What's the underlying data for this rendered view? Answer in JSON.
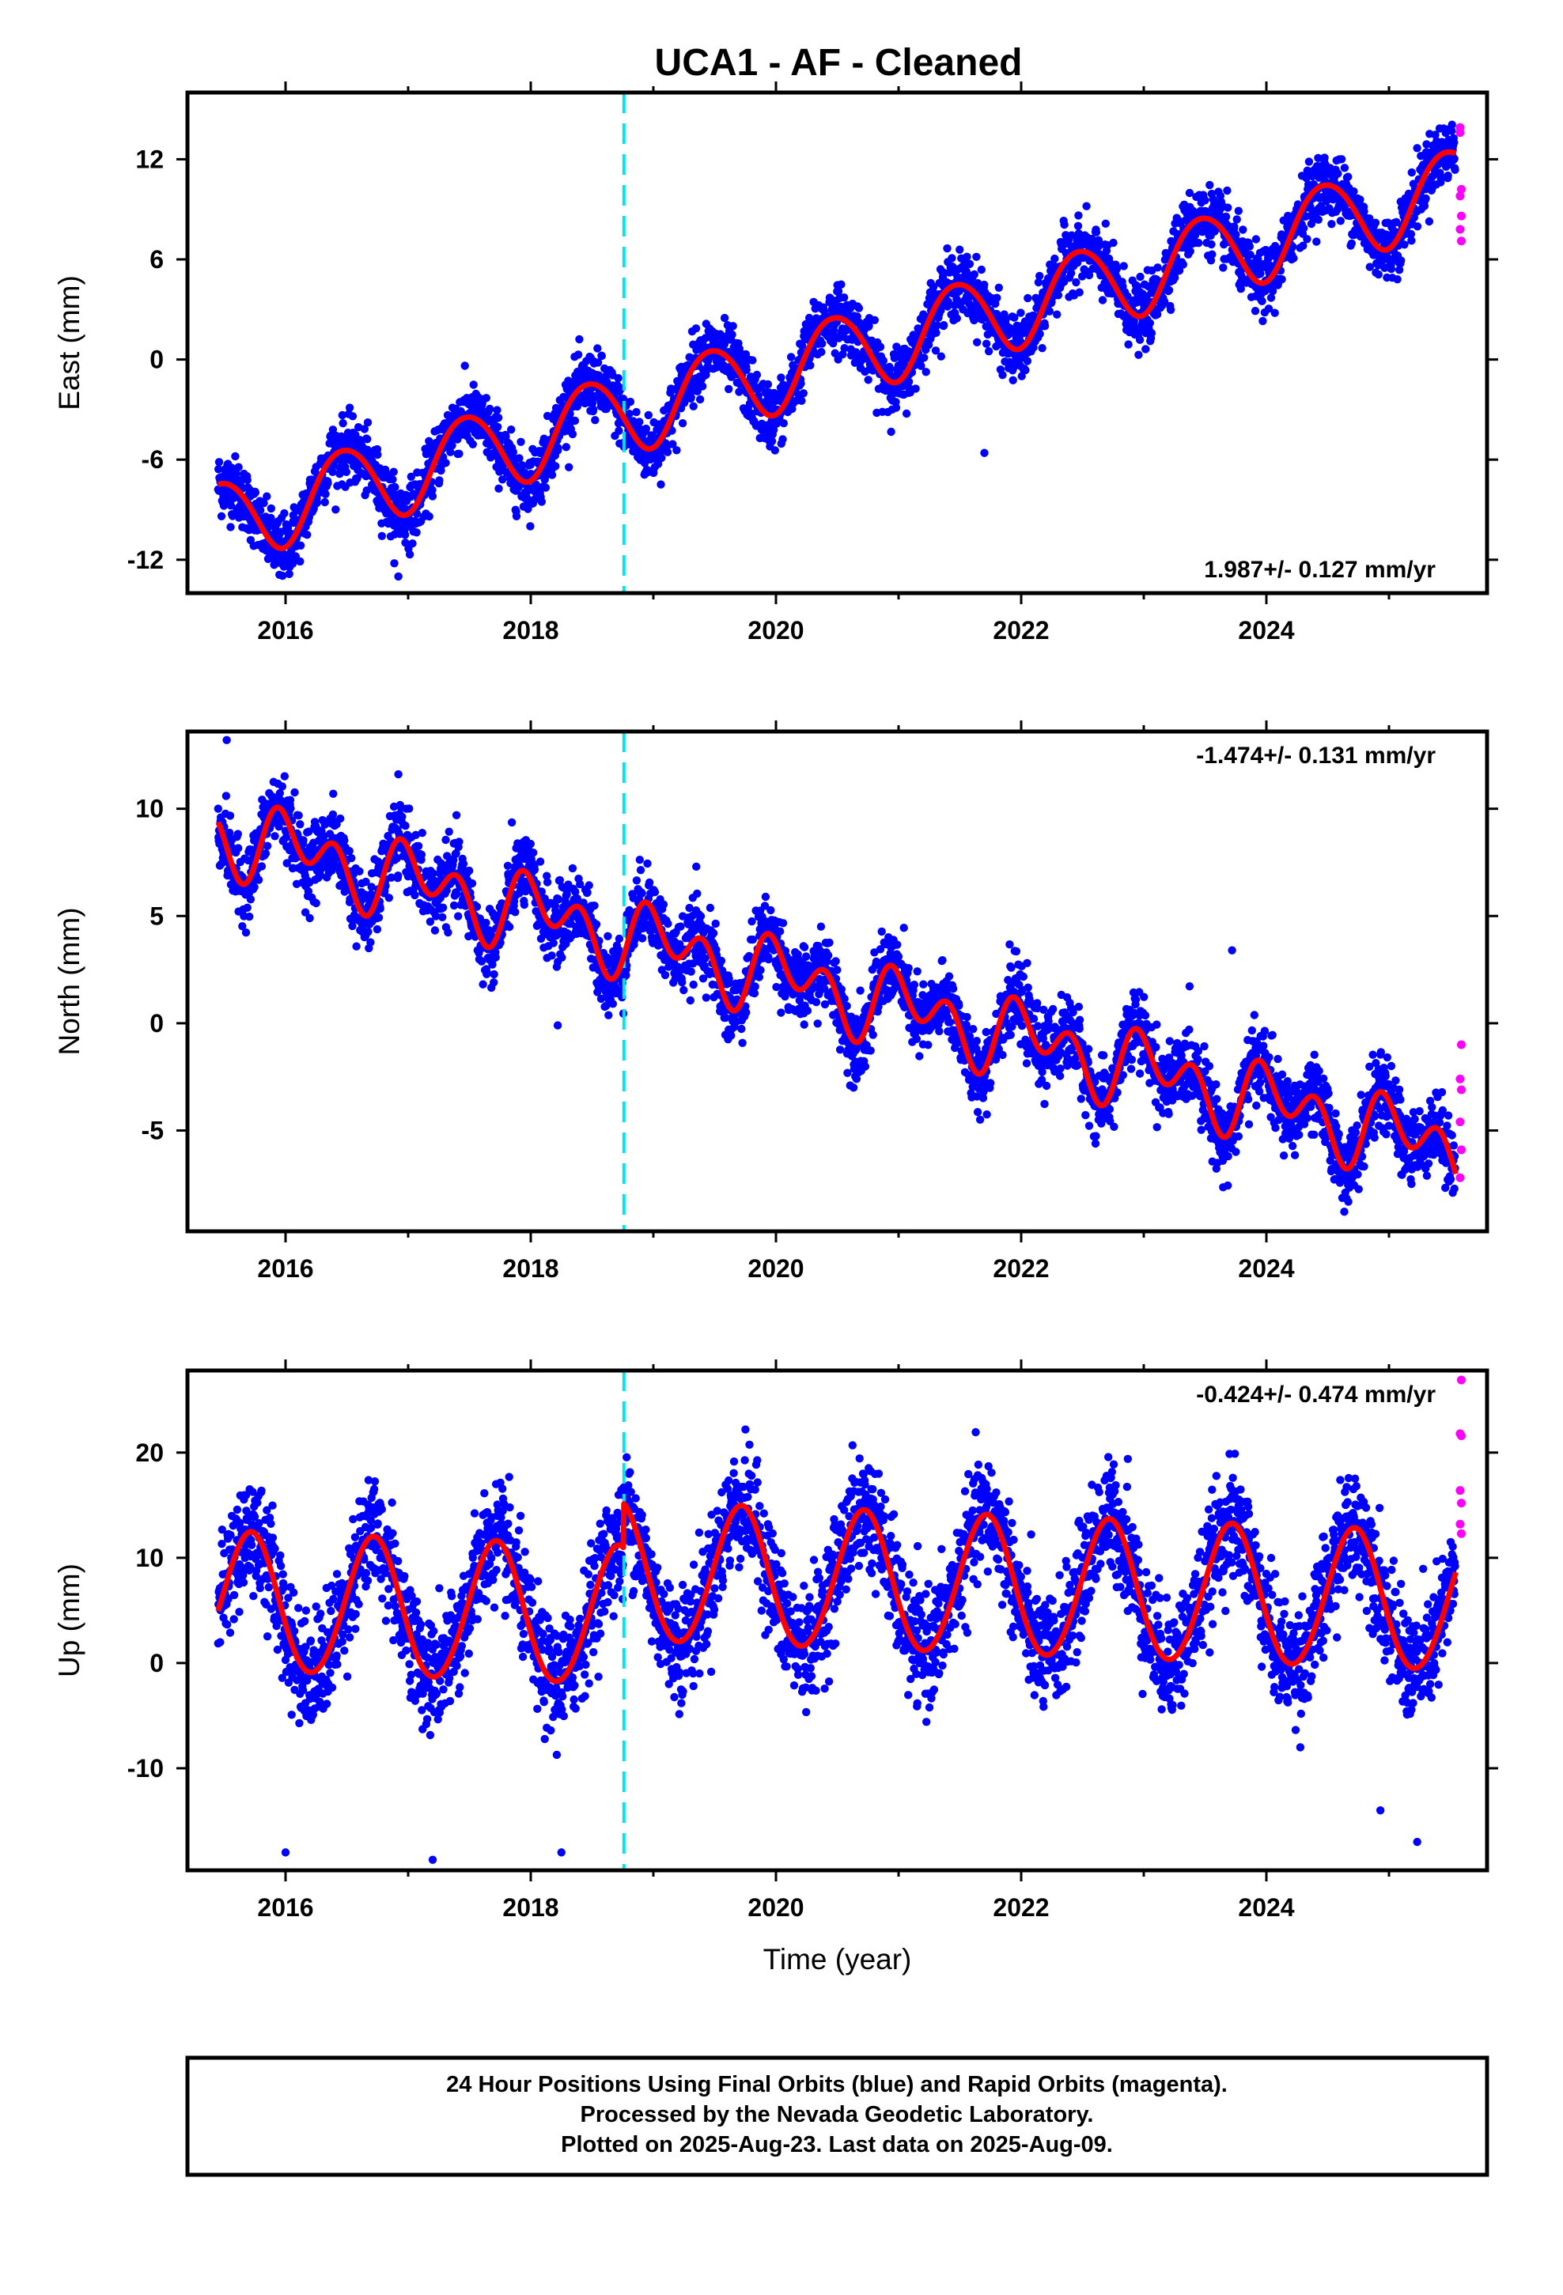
{
  "figure": {
    "title": "UCA1  - AF - Cleaned",
    "footer": {
      "lines": [
        "24 Hour Positions Using Final Orbits (blue) and Rapid Orbits (magenta).",
        "Processed by the Nevada Geodetic Laboratory.",
        "Plotted on 2025-Aug-23. Last data on 2025-Aug-09."
      ]
    },
    "colors": {
      "final_orbits": "#0000ff",
      "rapid_orbits": "#ff00ff",
      "model_fit": "#ff0000",
      "equipment_change": "#00e5ee",
      "frame": "#000000"
    }
  },
  "chart_data": [
    {
      "type": "scatter",
      "component": "East",
      "ylabel": "East (mm)",
      "xlabel": "",
      "xlim": [
        2015.2,
        2025.8
      ],
      "ylim": [
        -14,
        16
      ],
      "xticks": [
        2016,
        2018,
        2020,
        2022,
        2024
      ],
      "yticks": [
        -12,
        -6,
        0,
        6,
        12
      ],
      "rate_label": "1.987+/- 0.127 mm/yr",
      "rate_position": "bottom-right",
      "equipment_change_epoch": 2018.76,
      "model": {
        "t0": 2020.5,
        "offset": 0.3,
        "velocity": 1.987,
        "annual_cos": -2.4,
        "annual_sin": 0.4,
        "semiannual_cos": -0.2,
        "semiannual_sin": 0.0,
        "jump": 0.0,
        "start": 2015.45,
        "end": 2025.55
      },
      "final_orbit_series": {
        "name": "Final Orbits (blue)",
        "start": 2015.45,
        "end": 2025.54,
        "scatter_mm": 0.95
      },
      "rapid_orbit_points": [
        [
          2025.58,
          13.9
        ],
        [
          2025.58,
          13.6
        ],
        [
          2025.59,
          10.2
        ],
        [
          2025.58,
          9.8
        ],
        [
          2025.59,
          8.6
        ],
        [
          2025.58,
          7.8
        ],
        [
          2025.59,
          7.1
        ]
      ],
      "outliers": [
        [
          2021.7,
          -5.6
        ],
        [
          2016.92,
          -13.0
        ],
        [
          2015.95,
          -12.9
        ]
      ]
    },
    {
      "type": "scatter",
      "component": "North",
      "ylabel": "North (mm)",
      "xlabel": "",
      "xlim": [
        2015.2,
        2025.8
      ],
      "ylim": [
        -9.7,
        13.6
      ],
      "xticks": [
        2016,
        2018,
        2020,
        2022,
        2024
      ],
      "yticks": [
        -5,
        0,
        5,
        10
      ],
      "rate_label": "-1.474+/- 0.131 mm/yr",
      "rate_position": "top-right",
      "equipment_change_epoch": 2018.76,
      "model": {
        "t0": 2020.5,
        "offset": 1.5,
        "velocity": -1.474,
        "annual_cos": 0.9,
        "annual_sin": 0.5,
        "semiannual_cos": 0.6,
        "semiannual_sin": -1.1,
        "jump": 0.0,
        "start": 2015.45,
        "end": 2025.55
      },
      "final_orbit_series": {
        "name": "Final Orbits (blue)",
        "start": 2015.45,
        "end": 2025.54,
        "scatter_mm": 0.85
      },
      "rapid_orbit_points": [
        [
          2025.59,
          -1.0
        ],
        [
          2025.58,
          -2.6
        ],
        [
          2025.59,
          -3.1
        ],
        [
          2025.58,
          -4.6
        ],
        [
          2025.59,
          -5.9
        ],
        [
          2025.58,
          -7.2
        ]
      ],
      "outliers": [
        [
          2023.72,
          3.4
        ],
        [
          2018.22,
          -0.1
        ],
        [
          2019.35,
          7.3
        ],
        [
          2015.52,
          13.2
        ]
      ]
    },
    {
      "type": "scatter",
      "component": "Up",
      "ylabel": "Up (mm)",
      "xlabel": "Time (year)",
      "xlim": [
        2015.2,
        2025.8
      ],
      "ylim": [
        -19.7,
        27.8
      ],
      "xticks": [
        2016,
        2018,
        2020,
        2022,
        2024
      ],
      "yticks": [
        -10,
        0,
        10,
        20
      ],
      "rate_label": "-0.424+/- 0.474 mm/yr",
      "rate_position": "top-right",
      "equipment_change_epoch": 2018.76,
      "model": {
        "t0": 2020.5,
        "offset": 3.6,
        "velocity": -0.424,
        "annual_cos": -1.5,
        "annual_sin": -6.4,
        "semiannual_cos": -0.3,
        "semiannual_sin": 0.0,
        "jump": 4.2,
        "start": 2015.45,
        "end": 2025.55
      },
      "final_orbit_series": {
        "name": "Final Orbits (blue)",
        "start": 2015.45,
        "end": 2025.54,
        "scatter_mm": 2.7
      },
      "rapid_orbit_points": [
        [
          2025.59,
          26.9
        ],
        [
          2025.58,
          21.8
        ],
        [
          2025.59,
          21.6
        ],
        [
          2025.58,
          16.4
        ],
        [
          2025.59,
          15.2
        ],
        [
          2025.58,
          13.2
        ],
        [
          2025.59,
          12.3
        ]
      ],
      "outliers": [
        [
          2025.23,
          -17.0
        ],
        [
          2016.0,
          -18.0
        ],
        [
          2017.2,
          -18.7
        ],
        [
          2018.25,
          -18.0
        ],
        [
          2024.93,
          -14.0
        ],
        [
          2022.87,
          19.4
        ]
      ]
    }
  ]
}
